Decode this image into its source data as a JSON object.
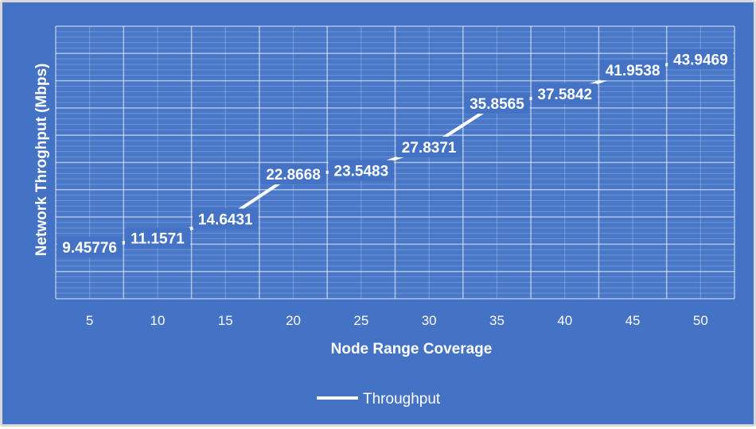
{
  "chart_data": {
    "type": "line",
    "title": "",
    "xlabel": "Node Range Coverage",
    "ylabel": "Network Throghput (Mbps)",
    "categories": [
      "5",
      "10",
      "15",
      "20",
      "25",
      "30",
      "35",
      "40",
      "45",
      "50"
    ],
    "series": [
      {
        "name": "Throughput",
        "values": [
          9.45776,
          11.1571,
          14.6431,
          22.8668,
          23.5483,
          27.8371,
          35.8565,
          37.5842,
          41.9538,
          43.9469
        ],
        "labels": [
          "9.45776",
          "11.1571",
          "14.6431",
          "22.8668",
          "23.5483",
          "27.8371",
          "35.8565",
          "37.5842",
          "41.9538",
          "43.9469"
        ]
      }
    ],
    "ylim": [
      0,
      50
    ],
    "y_ticks_shown": false,
    "grid": true,
    "legend": "bottom",
    "colors": {
      "background": "#4472c4",
      "plot_area": "#4a78c8",
      "grid": "#ffffff",
      "line": "#ffffff",
      "label_box": "#4472c4"
    }
  }
}
